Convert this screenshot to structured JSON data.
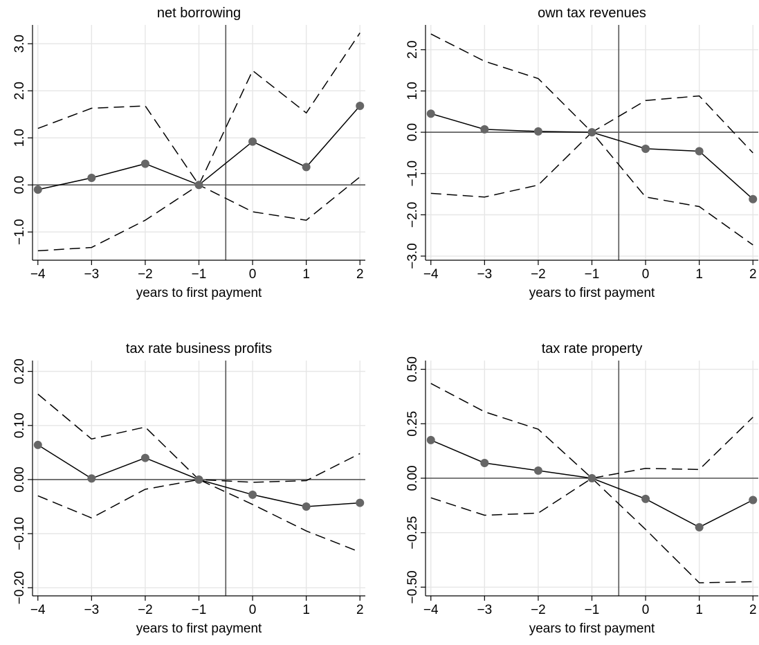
{
  "figure": {
    "background": "#ffffff",
    "colors": {
      "grid": "#e6e6e6",
      "axis": "#000000",
      "refline": "#555555",
      "estimate": "#000000",
      "ci": "#000000",
      "marker": "#666666"
    }
  },
  "chart_data": [
    {
      "type": "line",
      "title": "net borrowing",
      "xlabel": "years to first payment",
      "ylabel": "",
      "x": [
        -4,
        -3,
        -2,
        -1,
        0,
        1,
        2
      ],
      "xticks": [
        "−4",
        "−3",
        "−2",
        "−1",
        "0",
        "1",
        "2"
      ],
      "yticks": [
        -1.0,
        0.0,
        1.0,
        2.0,
        3.0
      ],
      "yticklabels": [
        "−1.0",
        "0.0",
        "1.0",
        "2.0",
        "3.0"
      ],
      "xlim": [
        -4.1,
        2.1
      ],
      "ylim": [
        -1.6,
        3.4
      ],
      "grid": true,
      "reference_lines": {
        "horizontal": 0,
        "vertical": -0.5
      },
      "series": [
        {
          "role": "estimate",
          "style": "solid with markers",
          "values": [
            -0.1,
            0.15,
            0.45,
            0.0,
            0.92,
            0.38,
            1.68
          ]
        },
        {
          "role": "upper",
          "style": "dashed",
          "values": [
            1.2,
            1.63,
            1.68,
            0.0,
            2.43,
            1.53,
            3.23
          ]
        },
        {
          "role": "lower",
          "style": "dashed",
          "values": [
            -1.4,
            -1.33,
            -0.75,
            0.0,
            -0.57,
            -0.75,
            0.17
          ]
        }
      ]
    },
    {
      "type": "line",
      "title": "own tax revenues",
      "xlabel": "years to first payment",
      "ylabel": "",
      "x": [
        -4,
        -3,
        -2,
        -1,
        0,
        1,
        2
      ],
      "xticks": [
        "−4",
        "−3",
        "−2",
        "−1",
        "0",
        "1",
        "2"
      ],
      "yticks": [
        -3.0,
        -2.0,
        -1.0,
        0.0,
        1.0,
        2.0
      ],
      "yticklabels": [
        "−3.0",
        "−2.0",
        "−1.0",
        "0.0",
        "1.0",
        "2.0"
      ],
      "xlim": [
        -4.1,
        2.1
      ],
      "ylim": [
        -3.1,
        2.6
      ],
      "grid": true,
      "reference_lines": {
        "horizontal": 0,
        "vertical": -0.5
      },
      "series": [
        {
          "role": "estimate",
          "style": "solid with markers",
          "values": [
            0.45,
            0.07,
            0.02,
            0.0,
            -0.4,
            -0.46,
            -1.62
          ]
        },
        {
          "role": "upper",
          "style": "dashed",
          "values": [
            2.38,
            1.72,
            1.3,
            0.0,
            0.77,
            0.88,
            -0.5
          ]
        },
        {
          "role": "lower",
          "style": "dashed",
          "values": [
            -1.48,
            -1.57,
            -1.28,
            0.0,
            -1.57,
            -1.8,
            -2.73
          ]
        }
      ]
    },
    {
      "type": "line",
      "title": "tax rate business profits",
      "xlabel": "years to first payment",
      "ylabel": "",
      "x": [
        -4,
        -3,
        -2,
        -1,
        0,
        1,
        2
      ],
      "xticks": [
        "−4",
        "−3",
        "−2",
        "−1",
        "0",
        "1",
        "2"
      ],
      "yticks": [
        -0.2,
        -0.1,
        0.0,
        0.1,
        0.2
      ],
      "yticklabels": [
        "−0.20",
        "−0.10",
        "0.00",
        "0.10",
        "0.20"
      ],
      "xlim": [
        -4.1,
        2.1
      ],
      "ylim": [
        -0.215,
        0.22
      ],
      "grid": true,
      "reference_lines": {
        "horizontal": 0,
        "vertical": -0.5
      },
      "series": [
        {
          "role": "estimate",
          "style": "solid with markers",
          "values": [
            0.064,
            0.002,
            0.04,
            0.0,
            -0.028,
            -0.05,
            -0.043
          ]
        },
        {
          "role": "upper",
          "style": "dashed",
          "values": [
            0.158,
            0.075,
            0.097,
            0.0,
            -0.005,
            -0.002,
            0.048
          ]
        },
        {
          "role": "lower",
          "style": "dashed",
          "values": [
            -0.03,
            -0.071,
            -0.018,
            0.0,
            -0.046,
            -0.095,
            -0.134
          ]
        }
      ]
    },
    {
      "type": "line",
      "title": "tax rate property",
      "xlabel": "years to first payment",
      "ylabel": "",
      "x": [
        -4,
        -3,
        -2,
        -1,
        0,
        1,
        2
      ],
      "xticks": [
        "−4",
        "−3",
        "−2",
        "−1",
        "0",
        "1",
        "2"
      ],
      "yticks": [
        -0.5,
        -0.25,
        0.0,
        0.25,
        0.5
      ],
      "yticklabels": [
        "−0.50",
        "−0.25",
        "0.00",
        "0.25",
        "0.50"
      ],
      "xlim": [
        -4.1,
        2.1
      ],
      "ylim": [
        -0.54,
        0.54
      ],
      "grid": true,
      "reference_lines": {
        "horizontal": 0,
        "vertical": -0.5
      },
      "series": [
        {
          "role": "estimate",
          "style": "solid with markers",
          "values": [
            0.175,
            0.07,
            0.035,
            0.0,
            -0.095,
            -0.225,
            -0.1
          ]
        },
        {
          "role": "upper",
          "style": "dashed",
          "values": [
            0.435,
            0.305,
            0.225,
            0.0,
            0.045,
            0.04,
            0.28
          ]
        },
        {
          "role": "lower",
          "style": "dashed",
          "values": [
            -0.09,
            -0.17,
            -0.16,
            0.0,
            -0.235,
            -0.48,
            -0.475
          ]
        }
      ]
    }
  ]
}
